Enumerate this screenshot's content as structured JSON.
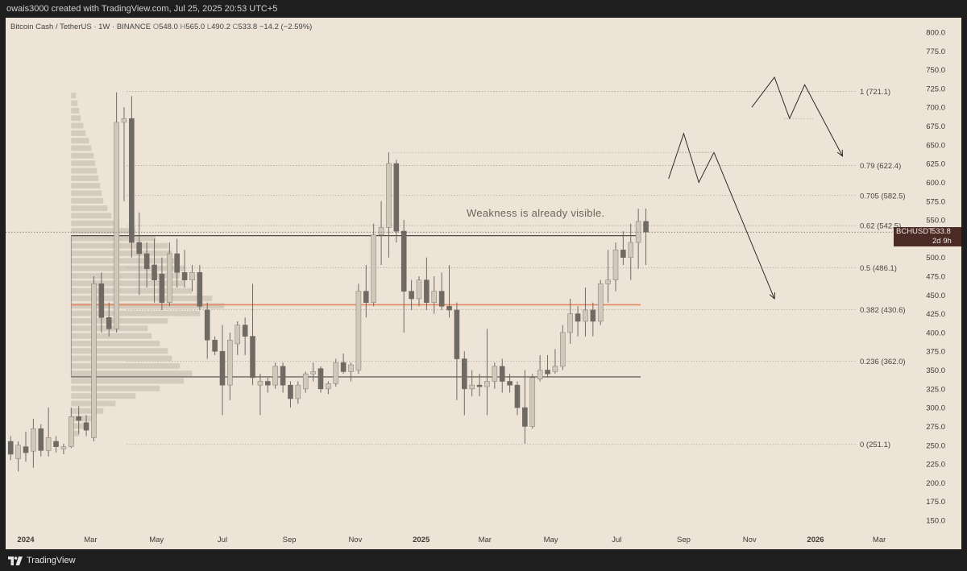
{
  "header": {
    "attribution": "owais3000 created with TradingView.com, Jul 25, 2025 20:53 UTC+5"
  },
  "legend": {
    "symbol": "Bitcoin Cash / TetherUS · 1W · BINANCE",
    "open_label": "O",
    "open": "548.0",
    "high_label": "H",
    "high": "565.0",
    "low_label": "L",
    "low": "490.2",
    "close_label": "C",
    "close": "533.8",
    "change": "−14.2 (−2.59%)"
  },
  "annotation": {
    "text": "Weakness is already visible."
  },
  "price_tag": {
    "symbol": "BCHUSDT",
    "price": "533.8",
    "time_left": "2d 9h"
  },
  "footer": {
    "brand": "TradingView"
  },
  "colors": {
    "background": "#ede4d7",
    "up_candle": "#d1c8bc",
    "down_candle": "#6f6a63",
    "wick": "#6f6a63",
    "volume_profile": "#cfc6ba",
    "poc_line": "#e3875f",
    "range_line": "#4f4a44",
    "fib_line": "#b0a89c"
  },
  "chart_data": {
    "type": "candlestick",
    "ylim": [
      140,
      810
    ],
    "y_ticks": [
      "800.0",
      "775.0",
      "750.0",
      "725.0",
      "700.0",
      "675.0",
      "650.0",
      "625.0",
      "600.0",
      "575.0",
      "550.0",
      "525.0",
      "500.0",
      "475.0",
      "450.0",
      "425.0",
      "400.0",
      "375.0",
      "350.0",
      "325.0",
      "300.0",
      "275.0",
      "250.0",
      "225.0",
      "200.0",
      "175.0",
      "150.0"
    ],
    "x_ticks": [
      {
        "label": "2024",
        "date": "2024-01-01",
        "bold": true
      },
      {
        "label": "Mar",
        "date": "2024-03-01"
      },
      {
        "label": "May",
        "date": "2024-05-01"
      },
      {
        "label": "Jul",
        "date": "2024-07-01"
      },
      {
        "label": "Sep",
        "date": "2024-09-01"
      },
      {
        "label": "Nov",
        "date": "2024-11-01"
      },
      {
        "label": "2025",
        "date": "2025-01-01",
        "bold": true
      },
      {
        "label": "Mar",
        "date": "2025-03-01"
      },
      {
        "label": "May",
        "date": "2025-05-01"
      },
      {
        "label": "Jul",
        "date": "2025-07-01"
      },
      {
        "label": "Sep",
        "date": "2025-09-01"
      },
      {
        "label": "Nov",
        "date": "2025-11-01"
      },
      {
        "label": "2026",
        "date": "2026-01-01",
        "bold": true
      },
      {
        "label": "Mar",
        "date": "2026-03-01"
      }
    ],
    "candles": [
      {
        "date": "2023-12-18",
        "o": 255,
        "h": 262,
        "l": 230,
        "c": 238
      },
      {
        "date": "2023-12-25",
        "o": 232,
        "h": 255,
        "l": 215,
        "c": 250
      },
      {
        "date": "2024-01-01",
        "o": 248,
        "h": 268,
        "l": 228,
        "c": 240
      },
      {
        "date": "2024-01-08",
        "o": 242,
        "h": 285,
        "l": 220,
        "c": 272
      },
      {
        "date": "2024-01-15",
        "o": 272,
        "h": 278,
        "l": 235,
        "c": 243
      },
      {
        "date": "2024-01-22",
        "o": 243,
        "h": 300,
        "l": 235,
        "c": 260
      },
      {
        "date": "2024-01-29",
        "o": 255,
        "h": 262,
        "l": 240,
        "c": 248
      },
      {
        "date": "2024-02-05",
        "o": 245,
        "h": 252,
        "l": 238,
        "c": 248
      },
      {
        "date": "2024-02-12",
        "o": 248,
        "h": 300,
        "l": 246,
        "c": 288
      },
      {
        "date": "2024-02-19",
        "o": 288,
        "h": 302,
        "l": 265,
        "c": 283
      },
      {
        "date": "2024-02-26",
        "o": 280,
        "h": 290,
        "l": 262,
        "c": 270
      },
      {
        "date": "2024-03-04",
        "o": 260,
        "h": 475,
        "l": 255,
        "c": 465
      },
      {
        "date": "2024-03-11",
        "o": 465,
        "h": 480,
        "l": 400,
        "c": 420
      },
      {
        "date": "2024-03-18",
        "o": 420,
        "h": 440,
        "l": 395,
        "c": 405
      },
      {
        "date": "2024-03-25",
        "o": 405,
        "h": 720,
        "l": 400,
        "c": 680
      },
      {
        "date": "2024-04-01",
        "o": 680,
        "h": 700,
        "l": 575,
        "c": 685
      },
      {
        "date": "2024-04-08",
        "o": 685,
        "h": 715,
        "l": 500,
        "c": 520
      },
      {
        "date": "2024-04-15",
        "o": 520,
        "h": 560,
        "l": 450,
        "c": 505
      },
      {
        "date": "2024-04-22",
        "o": 505,
        "h": 520,
        "l": 460,
        "c": 485
      },
      {
        "date": "2024-04-29",
        "o": 490,
        "h": 525,
        "l": 440,
        "c": 470
      },
      {
        "date": "2024-05-06",
        "o": 478,
        "h": 500,
        "l": 430,
        "c": 440
      },
      {
        "date": "2024-05-13",
        "o": 440,
        "h": 520,
        "l": 435,
        "c": 505
      },
      {
        "date": "2024-05-20",
        "o": 505,
        "h": 525,
        "l": 460,
        "c": 480
      },
      {
        "date": "2024-05-27",
        "o": 480,
        "h": 510,
        "l": 460,
        "c": 470
      },
      {
        "date": "2024-06-03",
        "o": 470,
        "h": 490,
        "l": 455,
        "c": 480
      },
      {
        "date": "2024-06-10",
        "o": 480,
        "h": 490,
        "l": 430,
        "c": 435
      },
      {
        "date": "2024-06-17",
        "o": 430,
        "h": 440,
        "l": 365,
        "c": 390
      },
      {
        "date": "2024-06-24",
        "o": 390,
        "h": 395,
        "l": 370,
        "c": 375
      },
      {
        "date": "2024-07-01",
        "o": 375,
        "h": 410,
        "l": 290,
        "c": 330
      },
      {
        "date": "2024-07-08",
        "o": 330,
        "h": 400,
        "l": 310,
        "c": 390
      },
      {
        "date": "2024-07-15",
        "o": 385,
        "h": 415,
        "l": 370,
        "c": 410
      },
      {
        "date": "2024-07-22",
        "o": 410,
        "h": 420,
        "l": 370,
        "c": 395
      },
      {
        "date": "2024-07-29",
        "o": 395,
        "h": 465,
        "l": 330,
        "c": 340
      },
      {
        "date": "2024-08-05",
        "o": 330,
        "h": 345,
        "l": 290,
        "c": 335
      },
      {
        "date": "2024-08-12",
        "o": 335,
        "h": 340,
        "l": 320,
        "c": 330
      },
      {
        "date": "2024-08-19",
        "o": 330,
        "h": 360,
        "l": 325,
        "c": 355
      },
      {
        "date": "2024-08-26",
        "o": 355,
        "h": 360,
        "l": 320,
        "c": 330
      },
      {
        "date": "2024-09-02",
        "o": 330,
        "h": 335,
        "l": 300,
        "c": 312
      },
      {
        "date": "2024-09-09",
        "o": 312,
        "h": 335,
        "l": 305,
        "c": 330
      },
      {
        "date": "2024-09-16",
        "o": 325,
        "h": 348,
        "l": 320,
        "c": 345
      },
      {
        "date": "2024-09-23",
        "o": 345,
        "h": 360,
        "l": 335,
        "c": 348
      },
      {
        "date": "2024-09-30",
        "o": 352,
        "h": 355,
        "l": 320,
        "c": 325
      },
      {
        "date": "2024-10-07",
        "o": 325,
        "h": 335,
        "l": 318,
        "c": 332
      },
      {
        "date": "2024-10-14",
        "o": 332,
        "h": 365,
        "l": 328,
        "c": 360
      },
      {
        "date": "2024-10-21",
        "o": 360,
        "h": 372,
        "l": 345,
        "c": 348
      },
      {
        "date": "2024-10-28",
        "o": 348,
        "h": 360,
        "l": 335,
        "c": 357
      },
      {
        "date": "2024-11-04",
        "o": 350,
        "h": 465,
        "l": 345,
        "c": 455
      },
      {
        "date": "2024-11-11",
        "o": 455,
        "h": 490,
        "l": 420,
        "c": 440
      },
      {
        "date": "2024-11-18",
        "o": 440,
        "h": 545,
        "l": 435,
        "c": 530
      },
      {
        "date": "2024-11-25",
        "o": 530,
        "h": 575,
        "l": 490,
        "c": 540
      },
      {
        "date": "2024-12-02",
        "o": 540,
        "h": 640,
        "l": 500,
        "c": 625
      },
      {
        "date": "2024-12-09",
        "o": 625,
        "h": 630,
        "l": 520,
        "c": 535
      },
      {
        "date": "2024-12-16",
        "o": 535,
        "h": 550,
        "l": 400,
        "c": 455
      },
      {
        "date": "2024-12-23",
        "o": 455,
        "h": 470,
        "l": 430,
        "c": 445
      },
      {
        "date": "2024-12-30",
        "o": 445,
        "h": 475,
        "l": 435,
        "c": 470
      },
      {
        "date": "2025-01-06",
        "o": 470,
        "h": 500,
        "l": 430,
        "c": 440
      },
      {
        "date": "2025-01-13",
        "o": 440,
        "h": 475,
        "l": 425,
        "c": 455
      },
      {
        "date": "2025-01-20",
        "o": 455,
        "h": 480,
        "l": 430,
        "c": 435
      },
      {
        "date": "2025-01-27",
        "o": 435,
        "h": 490,
        "l": 420,
        "c": 430
      },
      {
        "date": "2025-02-03",
        "o": 430,
        "h": 440,
        "l": 310,
        "c": 365
      },
      {
        "date": "2025-02-10",
        "o": 365,
        "h": 375,
        "l": 290,
        "c": 325
      },
      {
        "date": "2025-02-17",
        "o": 325,
        "h": 350,
        "l": 315,
        "c": 330
      },
      {
        "date": "2025-02-24",
        "o": 330,
        "h": 345,
        "l": 315,
        "c": 328
      },
      {
        "date": "2025-03-03",
        "o": 328,
        "h": 405,
        "l": 290,
        "c": 335
      },
      {
        "date": "2025-03-10",
        "o": 335,
        "h": 360,
        "l": 325,
        "c": 355
      },
      {
        "date": "2025-03-17",
        "o": 355,
        "h": 365,
        "l": 320,
        "c": 335
      },
      {
        "date": "2025-03-24",
        "o": 335,
        "h": 345,
        "l": 320,
        "c": 330
      },
      {
        "date": "2025-03-31",
        "o": 330,
        "h": 335,
        "l": 290,
        "c": 300
      },
      {
        "date": "2025-04-07",
        "o": 300,
        "h": 350,
        "l": 252,
        "c": 275
      },
      {
        "date": "2025-04-14",
        "o": 275,
        "h": 345,
        "l": 272,
        "c": 340
      },
      {
        "date": "2025-04-21",
        "o": 338,
        "h": 370,
        "l": 335,
        "c": 350
      },
      {
        "date": "2025-04-28",
        "o": 350,
        "h": 370,
        "l": 340,
        "c": 345
      },
      {
        "date": "2025-05-05",
        "o": 348,
        "h": 378,
        "l": 345,
        "c": 355
      },
      {
        "date": "2025-05-12",
        "o": 355,
        "h": 410,
        "l": 350,
        "c": 400
      },
      {
        "date": "2025-05-19",
        "o": 400,
        "h": 445,
        "l": 385,
        "c": 425
      },
      {
        "date": "2025-05-26",
        "o": 425,
        "h": 435,
        "l": 395,
        "c": 415
      },
      {
        "date": "2025-06-02",
        "o": 415,
        "h": 460,
        "l": 395,
        "c": 430
      },
      {
        "date": "2025-06-09",
        "o": 430,
        "h": 440,
        "l": 395,
        "c": 415
      },
      {
        "date": "2025-06-16",
        "o": 415,
        "h": 470,
        "l": 410,
        "c": 465
      },
      {
        "date": "2025-06-23",
        "o": 465,
        "h": 510,
        "l": 440,
        "c": 470
      },
      {
        "date": "2025-06-30",
        "o": 470,
        "h": 520,
        "l": 455,
        "c": 510
      },
      {
        "date": "2025-07-07",
        "o": 510,
        "h": 535,
        "l": 490,
        "c": 500
      },
      {
        "date": "2025-07-14",
        "o": 500,
        "h": 545,
        "l": 470,
        "c": 520
      },
      {
        "date": "2025-07-21",
        "o": 520,
        "h": 565,
        "l": 485,
        "c": 548
      },
      {
        "date": "2025-07-21b",
        "o": 548,
        "h": 565,
        "l": 490,
        "c": 533.8
      }
    ],
    "fib_levels": [
      {
        "label": "1 (721.1)",
        "price": 721.1
      },
      {
        "label": "0.79 (622.4)",
        "price": 622.4
      },
      {
        "label": "0.705 (582.5)",
        "price": 582.5
      },
      {
        "label": "0.62 (542.5)",
        "price": 542.5
      },
      {
        "label": "0.5 (486.1)",
        "price": 486.1
      },
      {
        "label": "0.382 (430.6)",
        "price": 430.6
      },
      {
        "label": "0.236 (362.0)",
        "price": 362.0
      },
      {
        "label": "0 (251.1)",
        "price": 251.1
      }
    ],
    "range_lines": [
      {
        "price": 529
      },
      {
        "price": 341
      }
    ],
    "poc_line": {
      "price": 437
    },
    "current_price": 533.8,
    "volume_profile": [
      {
        "price": 255,
        "w": 4
      },
      {
        "price": 265,
        "w": 10
      },
      {
        "price": 275,
        "w": 20
      },
      {
        "price": 285,
        "w": 30
      },
      {
        "price": 295,
        "w": 40
      },
      {
        "price": 305,
        "w": 55
      },
      {
        "price": 315,
        "w": 80
      },
      {
        "price": 325,
        "w": 110
      },
      {
        "price": 335,
        "w": 140
      },
      {
        "price": 345,
        "w": 150
      },
      {
        "price": 355,
        "w": 135
      },
      {
        "price": 365,
        "w": 125
      },
      {
        "price": 375,
        "w": 120
      },
      {
        "price": 385,
        "w": 110
      },
      {
        "price": 395,
        "w": 100
      },
      {
        "price": 405,
        "w": 95
      },
      {
        "price": 415,
        "w": 120
      },
      {
        "price": 425,
        "w": 160
      },
      {
        "price": 435,
        "w": 190
      },
      {
        "price": 445,
        "w": 175
      },
      {
        "price": 455,
        "w": 150
      },
      {
        "price": 465,
        "w": 140
      },
      {
        "price": 475,
        "w": 135
      },
      {
        "price": 485,
        "w": 140
      },
      {
        "price": 495,
        "w": 135
      },
      {
        "price": 505,
        "w": 125
      },
      {
        "price": 515,
        "w": 120
      },
      {
        "price": 525,
        "w": 105
      },
      {
        "price": 535,
        "w": 80
      },
      {
        "price": 545,
        "w": 60
      },
      {
        "price": 555,
        "w": 50
      },
      {
        "price": 565,
        "w": 45
      },
      {
        "price": 575,
        "w": 40
      },
      {
        "price": 585,
        "w": 38
      },
      {
        "price": 595,
        "w": 36
      },
      {
        "price": 605,
        "w": 34
      },
      {
        "price": 615,
        "w": 32
      },
      {
        "price": 625,
        "w": 30
      },
      {
        "price": 635,
        "w": 28
      },
      {
        "price": 645,
        "w": 25
      },
      {
        "price": 655,
        "w": 22
      },
      {
        "price": 665,
        "w": 18
      },
      {
        "price": 675,
        "w": 15
      },
      {
        "price": 685,
        "w": 12
      },
      {
        "price": 695,
        "w": 10
      },
      {
        "price": 705,
        "w": 8
      },
      {
        "price": 715,
        "w": 6
      }
    ],
    "projection_paths": [
      {
        "points": [
          [
            "2025-08-18",
            605
          ],
          [
            "2025-09-01",
            665
          ],
          [
            "2025-09-15",
            600
          ],
          [
            "2025-09-29",
            640
          ],
          [
            "2025-11-24",
            445
          ]
        ],
        "arrow": true
      },
      {
        "points": [
          [
            "2025-11-03",
            700
          ],
          [
            "2025-11-24",
            740
          ],
          [
            "2025-12-08",
            685
          ],
          [
            "2025-12-22",
            730
          ],
          [
            "2026-01-26",
            635
          ]
        ],
        "arrow": true
      }
    ]
  }
}
